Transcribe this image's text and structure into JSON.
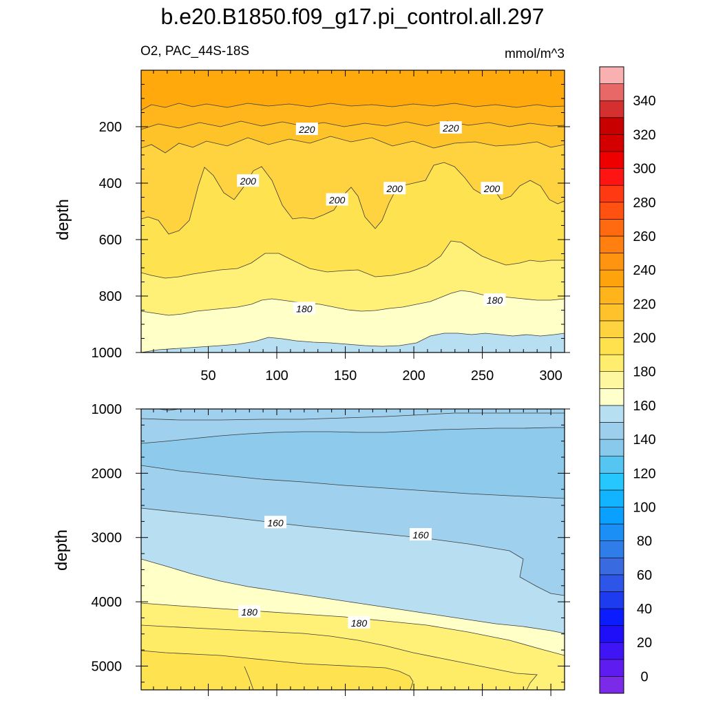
{
  "title": "b.e20.B1850.f09_g17.pi_control.all.297",
  "subtitle_left": "O2, PAC_44S-18S",
  "subtitle_right": "mmol/m^3",
  "chart_data": [
    {
      "type": "contour",
      "panel": "upper",
      "ylabel": "depth",
      "xlim": [
        1,
        310
      ],
      "ylim": [
        1000,
        0
      ],
      "x_ticks": [
        50,
        100,
        150,
        200,
        250,
        300
      ],
      "x_tick_labels": [
        "50",
        "100",
        "150",
        "200",
        "250",
        "300"
      ],
      "y_ticks": [
        200,
        400,
        600,
        800,
        1000
      ],
      "y_tick_labels": [
        "200",
        "400",
        "600",
        "800",
        "1000"
      ],
      "contour_labels": [
        {
          "x": 122,
          "y": 210,
          "text": "220"
        },
        {
          "x": 227,
          "y": 205,
          "text": "220"
        },
        {
          "x": 79,
          "y": 393,
          "text": "200"
        },
        {
          "x": 144,
          "y": 460,
          "text": "200"
        },
        {
          "x": 186,
          "y": 420,
          "text": "200"
        },
        {
          "x": 257,
          "y": 420,
          "text": "200"
        },
        {
          "x": 120,
          "y": 845,
          "text": "180"
        },
        {
          "x": 259,
          "y": 815,
          "text": "180"
        }
      ]
    },
    {
      "type": "contour",
      "panel": "lower",
      "ylabel": "depth",
      "xlim": [
        1,
        310
      ],
      "ylim": [
        5370,
        1000
      ],
      "y_ticks": [
        1000,
        2000,
        3000,
        4000,
        5000
      ],
      "y_tick_labels": [
        "1000",
        "2000",
        "3000",
        "4000",
        "5000"
      ],
      "contour_labels": [
        {
          "x": 99,
          "y": 2770,
          "text": "160"
        },
        {
          "x": 205,
          "y": 2960,
          "text": "160"
        },
        {
          "x": 80,
          "y": 4160,
          "text": "180"
        },
        {
          "x": 160,
          "y": 4330,
          "text": "180"
        }
      ]
    }
  ],
  "colorbar": {
    "levels": [
      0,
      10,
      20,
      30,
      40,
      50,
      60,
      70,
      80,
      90,
      100,
      110,
      120,
      130,
      140,
      150,
      160,
      170,
      180,
      190,
      200,
      210,
      220,
      230,
      240,
      250,
      260,
      270,
      280,
      290,
      300,
      310,
      320,
      330,
      340,
      350
    ],
    "colors": [
      "#7b2be8",
      "#5e1cf0",
      "#3f14f5",
      "#1f0ff8",
      "#0b1cff",
      "#1d3cf0",
      "#2d55e8",
      "#3a6ae0",
      "#2f7de8",
      "#1b8ff5",
      "#0aa0ff",
      "#12b4ff",
      "#26c6ff",
      "#55c6f2",
      "#88c9ec",
      "#9dcfed",
      "#b6dff1",
      "#ffffcb",
      "#fff7a0",
      "#ffed6e",
      "#ffe14e",
      "#ffd340",
      "#ffc22a",
      "#ffb41c",
      "#ffa30d",
      "#ff9410",
      "#ff7f10",
      "#ff6a10",
      "#ff5210",
      "#ff3a12",
      "#ff1414",
      "#ee0000",
      "#d40000",
      "#c80000",
      "#d43030",
      "#e86868",
      "#f8b0b0"
    ],
    "tick_labels": [
      "0",
      "20",
      "40",
      "60",
      "80",
      "100",
      "120",
      "140",
      "160",
      "180",
      "200",
      "220",
      "240",
      "260",
      "280",
      "300",
      "320",
      "340"
    ]
  }
}
